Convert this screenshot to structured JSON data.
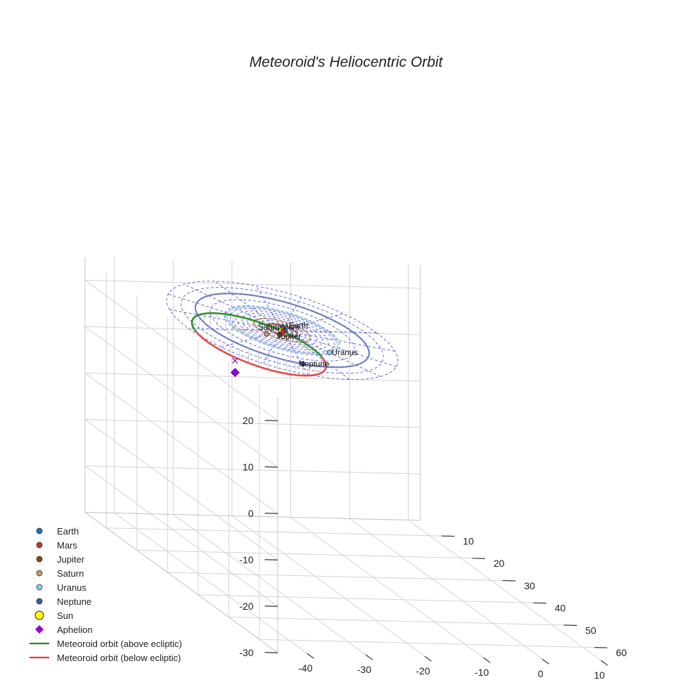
{
  "chart_data": {
    "type": "scatter3d",
    "title": "Meteoroid's Heliocentric Orbit",
    "axes": {
      "x": {
        "ticks": [
          -40,
          -30,
          -20,
          -10,
          0,
          10
        ],
        "range": [
          -45,
          12
        ]
      },
      "y": {
        "ticks": [
          10,
          20,
          30,
          40,
          50,
          60
        ],
        "range": [
          3,
          66
        ]
      },
      "z": {
        "ticks": [
          20,
          10,
          0,
          -10,
          -20,
          -30
        ],
        "range": [
          -30,
          25
        ]
      }
    },
    "ecliptic_grid": {
      "ring_radii_au": [
        2,
        4,
        6,
        8,
        10,
        12,
        14,
        16,
        18,
        20,
        25,
        30,
        35,
        40
      ],
      "radial_lines": 8
    },
    "planets": [
      {
        "name": "Earth",
        "label": "Earth",
        "color": "#1f77b4",
        "orbit_color": "#1f77b4",
        "orbit_radius_au": 1.0,
        "position_au": [
          1.0,
          0.0,
          0
        ]
      },
      {
        "name": "Mars",
        "label": "Mars",
        "color": "#d62728",
        "orbit_color": "#c0392b",
        "orbit_radius_au": 1.52,
        "position_au": [
          -0.65,
          1.3,
          0
        ]
      },
      {
        "name": "Jupiter",
        "label": "Jupiter",
        "color": "#8b4513",
        "orbit_color": "#8b4513",
        "orbit_radius_au": 5.2,
        "position_au": [
          -3.7,
          3.6,
          0
        ]
      },
      {
        "name": "Saturn",
        "label": "Saturn",
        "color": "#c49a6c",
        "orbit_color": "#c49a6c",
        "orbit_radius_au": 9.58,
        "position_au": [
          -9.0,
          3.3,
          0
        ]
      },
      {
        "name": "Uranus",
        "label": "Uranus",
        "color": "#87ceeb",
        "orbit_color": "#9fd4e0",
        "orbit_radius_au": 19.2,
        "position_au": [
          7.5,
          17.7,
          0
        ]
      },
      {
        "name": "Neptune",
        "label": "Neptune",
        "color": "#3a5ba0",
        "orbit_color": "#5a73b5",
        "orbit_radius_au": 30.05,
        "position_au": [
          -11.2,
          27.9,
          0
        ]
      }
    ],
    "sun": {
      "name": "Sun",
      "position_au": [
        0,
        0,
        0
      ],
      "color": "#ffff00"
    },
    "meteoroid_orbit": {
      "center_au": [
        -18.7,
        12.3,
        0
      ],
      "semi_axes_au": [
        23.2,
        9.6
      ],
      "rotation_deg": 33.5,
      "z_amplitude_au": 3.0,
      "above_color": "#228b22",
      "below_color": "#e53935",
      "above_label": "Meteoroid orbit (above ecliptic)",
      "below_label": "Meteoroid orbit (below ecliptic)"
    },
    "aphelion": {
      "label": "Aphelion",
      "position_au": [
        -38.0,
        25.1,
        -2.9
      ],
      "color": "#9400d3"
    },
    "aphelion_projection_marker": "×",
    "legend": [
      {
        "label": "Earth",
        "marker": "circle",
        "color": "#1f77b4"
      },
      {
        "label": "Mars",
        "marker": "circle",
        "color": "#c0392b"
      },
      {
        "label": "Jupiter",
        "marker": "circle",
        "color": "#8b4513"
      },
      {
        "label": "Saturn",
        "marker": "circle",
        "color": "#c49a6c"
      },
      {
        "label": "Uranus",
        "marker": "circle",
        "color": "#87ceeb"
      },
      {
        "label": "Neptune",
        "marker": "circle",
        "color": "#3a5ba0"
      },
      {
        "label": "Sun",
        "marker": "big-circle",
        "color": "#ffff00"
      },
      {
        "label": "Aphelion",
        "marker": "diamond",
        "color": "#9400d3"
      },
      {
        "label": "Meteoroid orbit (above ecliptic)",
        "marker": "line",
        "color": "#228b22"
      },
      {
        "label": "Meteoroid orbit (below ecliptic)",
        "marker": "line",
        "color": "#e53935"
      }
    ]
  }
}
